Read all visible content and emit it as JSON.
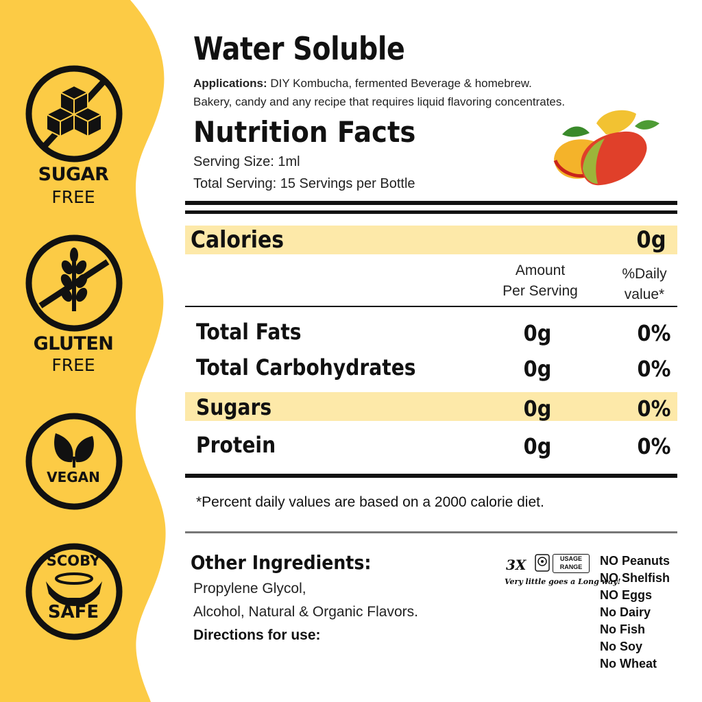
{
  "badges": [
    {
      "icon": "sugar-cubes-icon",
      "label_main": "SUGAR",
      "label_sub": "FREE"
    },
    {
      "icon": "wheat-icon",
      "label_main": "GLUTEN",
      "label_sub": "FREE"
    },
    {
      "icon": "leaves-icon",
      "label_main": "VEGAN",
      "label_sub": ""
    },
    {
      "icon": "scoby-hands-icon",
      "label_main": "SCOBY",
      "label_sub": "SAFE"
    }
  ],
  "header": {
    "title": "Water Soluble",
    "applications_label": "Applications:",
    "applications_line1": " DIY Kombucha, fermented Beverage & homebrew.",
    "applications_line2": "Bakery, candy and any recipe that requires liquid flavoring concentrates."
  },
  "nutrition": {
    "title": "Nutrition Facts",
    "serving_size": "Serving Size: 1ml",
    "total_serving": "Total Serving: 15 Servings per Bottle",
    "calories_label": "Calories",
    "calories_value": "0g",
    "col_amount_line1": "Amount",
    "col_amount_line2": "Per Serving",
    "col_daily_line1": "%Daily",
    "col_daily_line2": "value*",
    "rows": [
      {
        "label": "Total Fats",
        "amount": "0g",
        "daily": "0%"
      },
      {
        "label": "Total Carbohydrates",
        "amount": "0g",
        "daily": "0%"
      },
      {
        "label": "Sugars",
        "amount": "0g",
        "daily": "0%"
      },
      {
        "label": "Protein",
        "amount": "0g",
        "daily": "0%"
      }
    ],
    "footnote": "*Percent daily values are based on a 2000 calorie diet."
  },
  "ingredients": {
    "heading": "Other Ingredients:",
    "line1": "Propylene Glycol,",
    "line2": "Alcohol, Natural & Organic Flavors.",
    "directions": "Directions for use:"
  },
  "usage_badge": {
    "multiplier": "3X",
    "text_line1": "USAGE",
    "text_line2": "RANGE",
    "tagline": "Very little goes a Long way!"
  },
  "allergens": [
    "NO Peanuts",
    "NO Shelfish",
    "NO Eggs",
    "No Dairy",
    "No Fish",
    "No Soy",
    "No Wheat"
  ],
  "colors": {
    "accent_yellow": "#fccb45",
    "highlight": "#fde9a9",
    "ink": "#111111"
  }
}
